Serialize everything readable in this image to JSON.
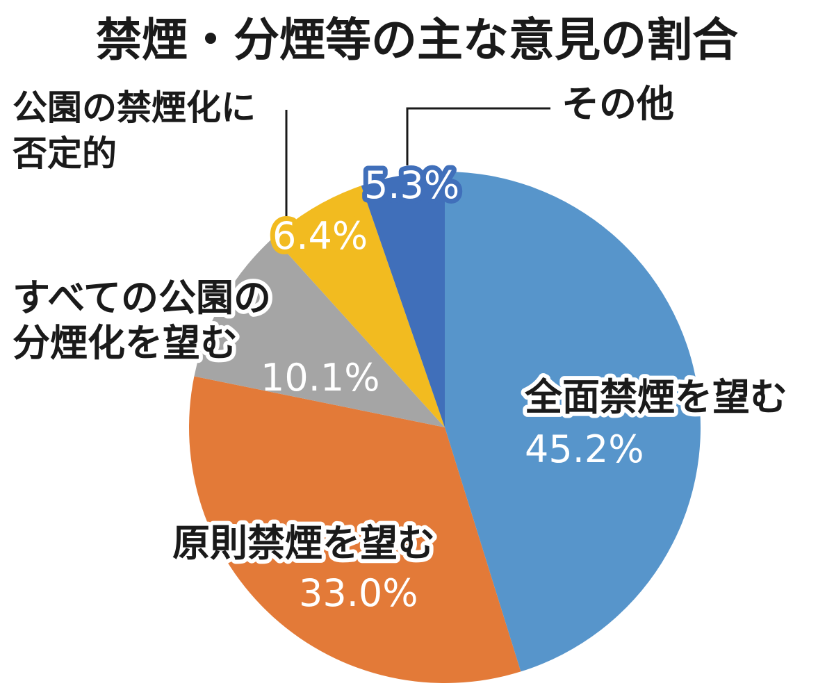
{
  "chart_data": {
    "type": "pie",
    "title": "禁煙・分煙等の主な意見の割合",
    "start": "12 o'clock, clockwise",
    "slices": [
      {
        "label": "全面禁煙を望む",
        "value": 45.2,
        "value_label": "45.2%",
        "color": "#5795cb"
      },
      {
        "label": "原則禁煙を望む",
        "value": 33.0,
        "value_label": "33.0%",
        "color": "#e37a38"
      },
      {
        "label": "すべての公園の分煙化を望む",
        "value": 10.1,
        "value_label": "10.1%",
        "color": "#a5a5a5"
      },
      {
        "label": "公園の禁煙化に否定的",
        "value": 6.4,
        "value_label": "6.4%",
        "color": "#f2bb20"
      },
      {
        "label": "その他",
        "value": 5.3,
        "value_label": "5.3%",
        "color": "#406fba"
      }
    ]
  }
}
